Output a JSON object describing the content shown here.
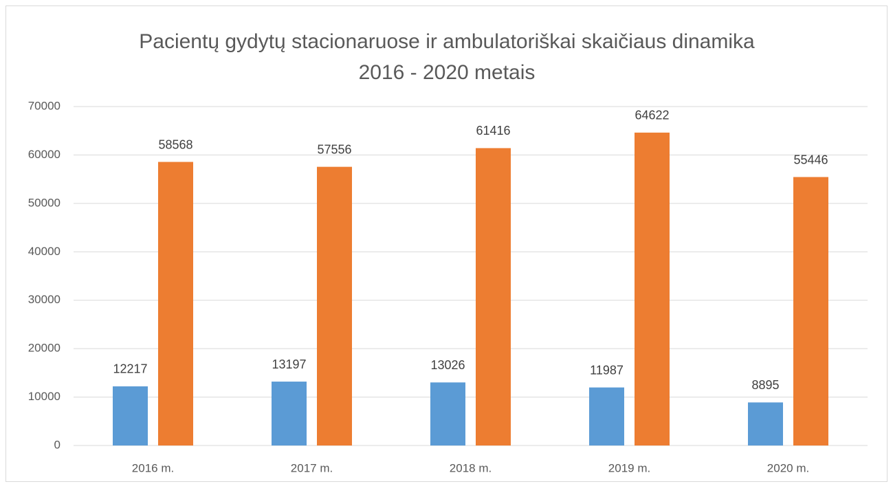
{
  "chart_data": {
    "type": "bar",
    "title": "Pacientų gydytų stacionaruose ir ambulatoriškai skaičiaus dinamika 2016 - 2020 metais",
    "categories": [
      "2016 m.",
      "2017 m.",
      "2018 m.",
      "2019 m.",
      "2020 m."
    ],
    "series": [
      {
        "color": "#5b9bd5",
        "values": [
          12217,
          13197,
          13026,
          11987,
          8895
        ]
      },
      {
        "color": "#ed7d31",
        "values": [
          58568,
          57556,
          61416,
          64622,
          55446
        ]
      }
    ],
    "ylim": [
      0,
      70000
    ],
    "yticks": [
      0,
      10000,
      20000,
      30000,
      40000,
      50000,
      60000,
      70000
    ],
    "grid": true
  }
}
